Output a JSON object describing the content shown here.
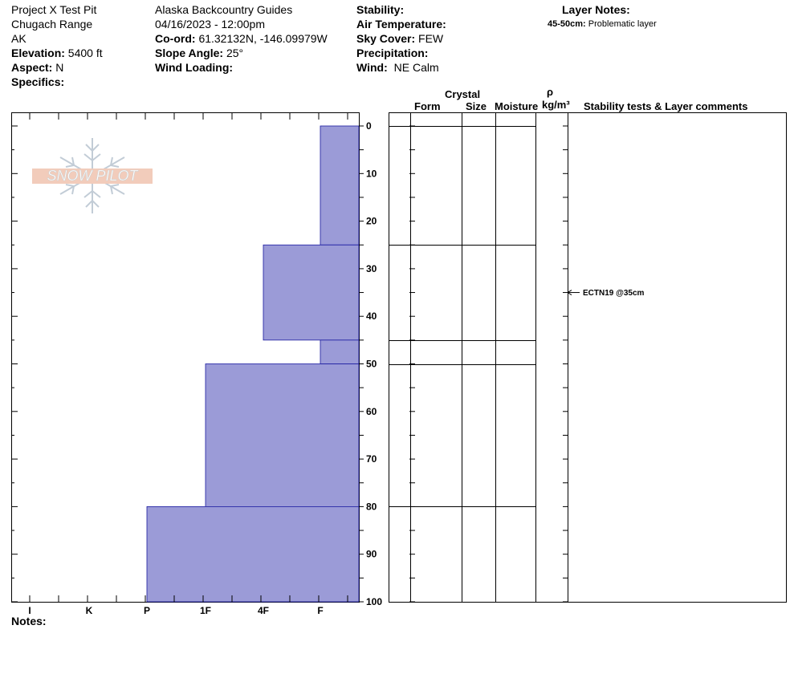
{
  "header": {
    "col1": {
      "pit_name": "Project X Test Pit",
      "range": "Chugach Range",
      "state": "AK",
      "elevation_label": "Elevation:",
      "elevation_value": "5400 ft",
      "aspect_label": "Aspect:",
      "aspect_value": "N",
      "specifics_label": "Specifics:"
    },
    "col2": {
      "organization": "Alaska Backcountry Guides",
      "datetime": "04/16/2023 - 12:00pm",
      "coord_label": "Co-ord:",
      "coord_value": "61.32132N, -146.09979W",
      "slope_label": "Slope Angle:",
      "slope_value": "25°",
      "wind_loading_label": "Wind Loading:"
    },
    "col3": {
      "stability_label": "Stability:",
      "air_temp_label": "Air Temperature:",
      "sky_cover_label": "Sky Cover:",
      "sky_cover_value": "FEW",
      "precip_label": "Precipitation:",
      "wind_label": "Wind:",
      "wind_value": "NE Calm"
    },
    "layer_notes": {
      "title": "Layer Notes:",
      "range": "45-50cm:",
      "text": "Problematic layer"
    }
  },
  "logo": {
    "text": "SNOW PILOT"
  },
  "columns": {
    "crystal": "Crystal",
    "form": "Form",
    "size": "Size",
    "moisture": "Moisture",
    "rho": "ρ",
    "density_unit": "kg/m³",
    "comments": "Stability tests & Layer comments"
  },
  "footer": {
    "notes_label": "Notes:"
  },
  "stability_test": {
    "label": "ECTN19 @35cm",
    "depth": 35
  },
  "chart_data": {
    "type": "bar",
    "orientation": "horizontal",
    "y_axis": {
      "range": [
        0,
        100
      ],
      "ticks": [
        0,
        10,
        20,
        30,
        40,
        50,
        60,
        70,
        80,
        90,
        100
      ],
      "inverted": true
    },
    "hardness_scale": [
      "I",
      "K",
      "P",
      "1F",
      "4F",
      "F"
    ],
    "bar_color": "#9b9bd7",
    "layers": [
      {
        "top": 0,
        "bottom": 25,
        "hardness": "F"
      },
      {
        "top": 25,
        "bottom": 45,
        "hardness": "4F"
      },
      {
        "top": 45,
        "bottom": 50,
        "hardness": "F"
      },
      {
        "top": 50,
        "bottom": 80,
        "hardness": "1F"
      },
      {
        "top": 80,
        "bottom": 100,
        "hardness": "P"
      }
    ],
    "layer_boundaries": [
      0,
      25,
      45,
      50,
      80
    ]
  }
}
